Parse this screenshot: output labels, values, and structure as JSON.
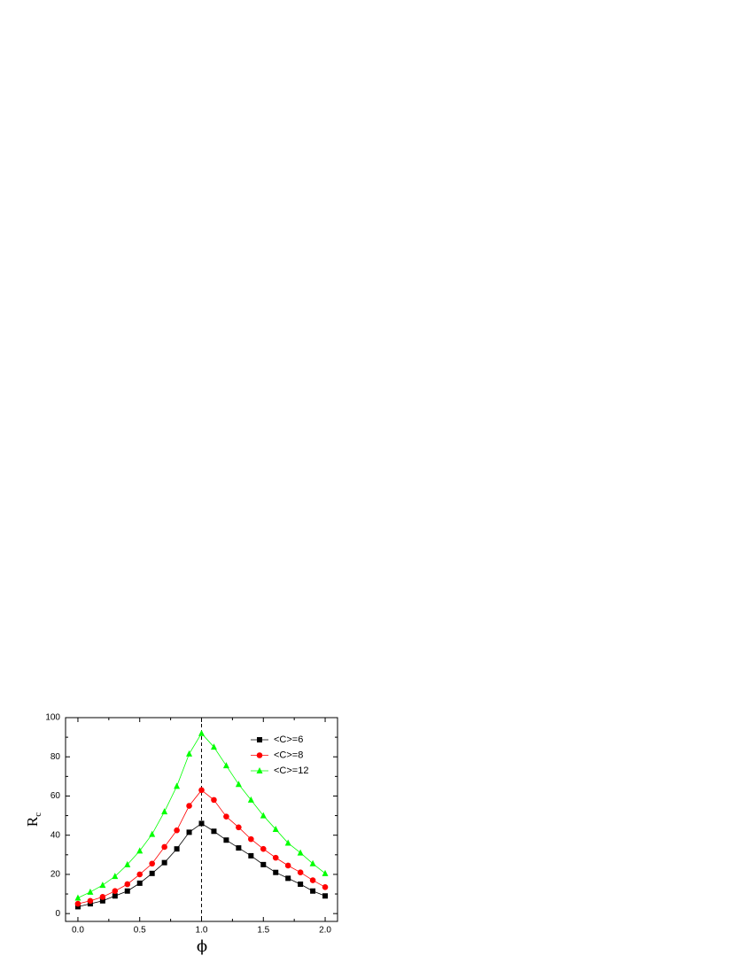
{
  "chart_data": {
    "type": "line",
    "xlabel": "ϕ",
    "ylabel": "R",
    "ylabel_sub": "c",
    "x": [
      0,
      0.1,
      0.2,
      0.3,
      0.4,
      0.5,
      0.6,
      0.7,
      0.8,
      0.9,
      1.0,
      1.1,
      1.2,
      1.3,
      1.4,
      1.5,
      1.6,
      1.7,
      1.8,
      1.9,
      2.0
    ],
    "series": [
      {
        "name": "<C>=6",
        "color": "#000000",
        "marker": "square",
        "values": [
          3.5,
          5,
          6.5,
          9,
          11.5,
          15.5,
          20.5,
          26,
          33,
          41.5,
          46,
          42,
          37.5,
          33.5,
          29.5,
          25,
          21,
          18,
          15,
          11.5,
          9
        ]
      },
      {
        "name": "<C>=8",
        "color": "#ff0000",
        "marker": "circle",
        "values": [
          5,
          6.5,
          8.5,
          11.5,
          15,
          20,
          25.5,
          34,
          42.5,
          55,
          63,
          58,
          49.5,
          44,
          38,
          33,
          28.5,
          24.5,
          21,
          17,
          13.5
        ]
      },
      {
        "name": "<C>=12",
        "color": "#00ff00",
        "marker": "triangle",
        "values": [
          8,
          11,
          14.5,
          19,
          25,
          32,
          40.5,
          52,
          65,
          81.5,
          92,
          85,
          75.5,
          66,
          58,
          50,
          43,
          36,
          31,
          25.5,
          20.5
        ]
      }
    ],
    "xlim": [
      -0.1,
      2.1
    ],
    "ylim": [
      -4,
      100
    ],
    "xticks": [
      {
        "value": 0,
        "label": "0.0"
      },
      {
        "value": 0.5,
        "label": "0.5"
      },
      {
        "value": 1,
        "label": "1.0"
      },
      {
        "value": 1.5,
        "label": "1.5"
      },
      {
        "value": 2,
        "label": "2.0"
      }
    ],
    "yticks": [
      0,
      20,
      40,
      60,
      80,
      100
    ],
    "vline": 1,
    "legend": "upper-right",
    "grid": false
  }
}
